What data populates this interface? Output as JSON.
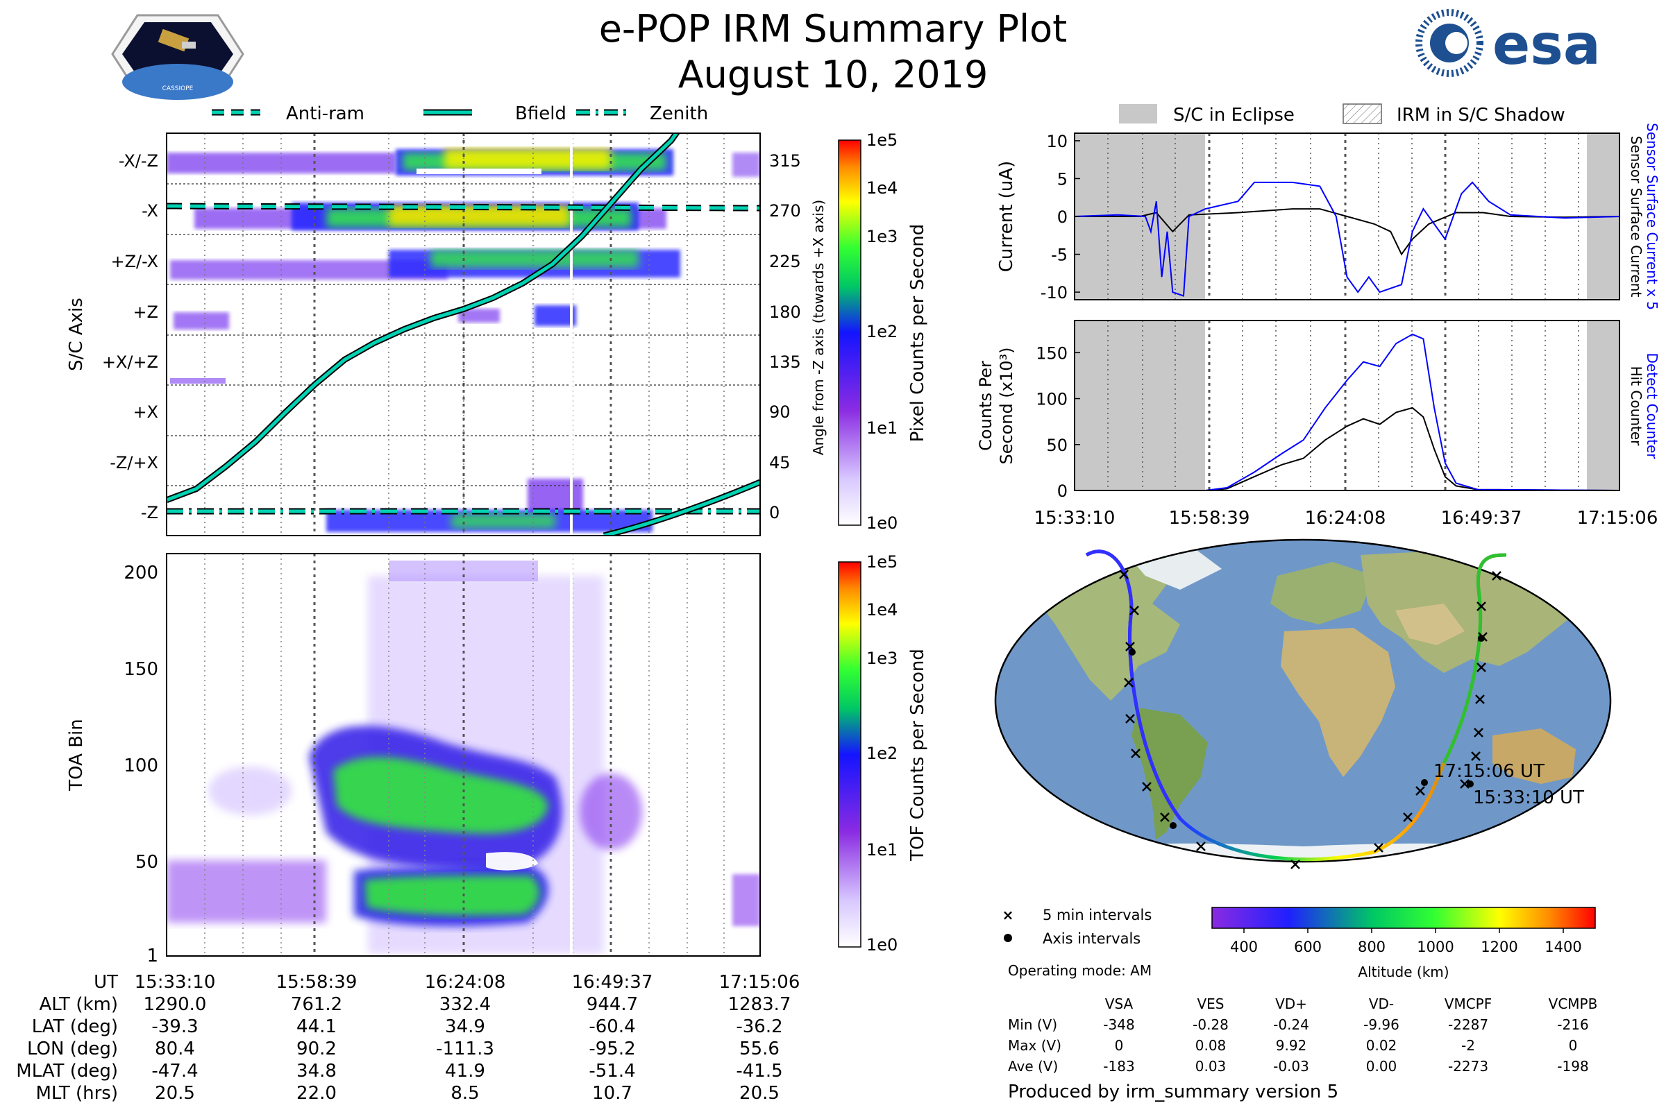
{
  "header": {
    "title": "e-POP IRM Summary Plot",
    "date": "August 10, 2019",
    "mission_logo_text": "CASSIOPE",
    "agency_logo_text": "esa"
  },
  "colors": {
    "bfield_line": "#00d2b4",
    "blue_series": "#0000ff",
    "black_series": "#000000",
    "eclipse_fill": "#c8c8c8",
    "grid_dotted": "#555555"
  },
  "chart_data": [
    {
      "id": "sc-axis-spectrogram",
      "type": "heatmap",
      "ylabel": "S/C Axis",
      "yticks": [
        "-X/-Z",
        "-X",
        "+Z/-X",
        "+Z",
        "+X/+Z",
        "+X",
        "-Z/+X",
        "-Z"
      ],
      "right_ylabel": "Angle from -Z axis (towards +X axis)",
      "right_yticks": [
        315,
        270,
        225,
        180,
        135,
        90,
        45,
        0
      ],
      "legend": [
        "Anti-ram",
        "Bfield",
        "Zenith"
      ],
      "colorbar": {
        "label": "Pixel Counts per Second",
        "ticks": [
          "1e5",
          "1e4",
          "1e3",
          "1e2",
          "1e1",
          "1e0"
        ]
      },
      "bfield_angle_deg": [
        [
          0,
          10
        ],
        [
          0.05,
          20
        ],
        [
          0.1,
          40
        ],
        [
          0.15,
          62
        ],
        [
          0.2,
          88
        ],
        [
          0.25,
          113
        ],
        [
          0.3,
          135
        ],
        [
          0.35,
          150
        ],
        [
          0.4,
          162
        ],
        [
          0.45,
          172
        ],
        [
          0.5,
          180
        ],
        [
          0.55,
          190
        ],
        [
          0.6,
          203
        ],
        [
          0.65,
          220
        ],
        [
          0.7,
          245
        ],
        [
          0.75,
          275
        ],
        [
          0.8,
          305
        ],
        [
          0.85,
          330
        ],
        [
          0.87,
          345
        ]
      ],
      "antiram_angle_deg": 270,
      "zenith_angle_deg": 0
    },
    {
      "id": "toa-spectrogram",
      "type": "heatmap",
      "ylabel": "TOA Bin",
      "yticks": [
        200,
        150,
        100,
        50,
        1
      ],
      "ylim": [
        1,
        210
      ],
      "colorbar": {
        "label": "TOF Counts per Second",
        "ticks": [
          "1e5",
          "1e4",
          "1e3",
          "1e2",
          "1e1",
          "1e0"
        ]
      }
    },
    {
      "id": "current-plot",
      "type": "line",
      "ylabel": "Current (uA)",
      "yticks": [
        10,
        5,
        0,
        -5,
        -10
      ],
      "ylim": [
        -11,
        11
      ],
      "right_label_blue": "Sensor Surface Current x 5",
      "right_label_black": "Sensor Surface Current",
      "legend": [
        "S/C in Eclipse",
        "IRM in S/C Shadow"
      ],
      "series": [
        {
          "name": "Sensor Surface Current x 5",
          "color": "blue",
          "points": [
            [
              0,
              0
            ],
            [
              0.08,
              0.2
            ],
            [
              0.13,
              0
            ],
            [
              0.14,
              -2
            ],
            [
              0.15,
              2
            ],
            [
              0.16,
              -8
            ],
            [
              0.17,
              -2
            ],
            [
              0.18,
              -10
            ],
            [
              0.2,
              -10.5
            ],
            [
              0.21,
              0
            ],
            [
              0.24,
              1
            ],
            [
              0.3,
              2
            ],
            [
              0.33,
              4.5
            ],
            [
              0.4,
              4.5
            ],
            [
              0.45,
              4
            ],
            [
              0.48,
              0
            ],
            [
              0.5,
              -8
            ],
            [
              0.52,
              -10
            ],
            [
              0.54,
              -8
            ],
            [
              0.56,
              -10
            ],
            [
              0.6,
              -9
            ],
            [
              0.62,
              -2
            ],
            [
              0.64,
              1
            ],
            [
              0.68,
              -3
            ],
            [
              0.71,
              3
            ],
            [
              0.73,
              4.5
            ],
            [
              0.76,
              2
            ],
            [
              0.8,
              0.2
            ],
            [
              0.9,
              -0.2
            ],
            [
              1,
              0
            ]
          ]
        },
        {
          "name": "Sensor Surface Current",
          "color": "black",
          "points": [
            [
              0,
              0
            ],
            [
              0.12,
              0
            ],
            [
              0.15,
              0.5
            ],
            [
              0.18,
              -2
            ],
            [
              0.21,
              0.2
            ],
            [
              0.3,
              0.5
            ],
            [
              0.4,
              1
            ],
            [
              0.45,
              1
            ],
            [
              0.5,
              0
            ],
            [
              0.55,
              -1
            ],
            [
              0.58,
              -2
            ],
            [
              0.6,
              -5
            ],
            [
              0.62,
              -3
            ],
            [
              0.65,
              -1
            ],
            [
              0.7,
              0.5
            ],
            [
              0.75,
              0.5
            ],
            [
              0.8,
              0
            ],
            [
              0.9,
              -0.1
            ],
            [
              1,
              0
            ]
          ]
        }
      ]
    },
    {
      "id": "counts-plot",
      "type": "line",
      "ylabel": "Counts Per Second (x10³)",
      "yticks": [
        150,
        100,
        50,
        0
      ],
      "ylim": [
        0,
        185
      ],
      "right_label_blue": "Detect Counter",
      "right_label_black": "Hit Counter",
      "xticks": [
        "15:33:10",
        "15:58:39",
        "16:24:08",
        "16:49:37",
        "17:15:06"
      ],
      "series": [
        {
          "name": "Detect Counter",
          "color": "blue",
          "points": [
            [
              0,
              0
            ],
            [
              0.24,
              0
            ],
            [
              0.28,
              3
            ],
            [
              0.33,
              20
            ],
            [
              0.38,
              40
            ],
            [
              0.42,
              55
            ],
            [
              0.46,
              90
            ],
            [
              0.5,
              120
            ],
            [
              0.53,
              140
            ],
            [
              0.56,
              135
            ],
            [
              0.59,
              160
            ],
            [
              0.62,
              170
            ],
            [
              0.64,
              165
            ],
            [
              0.66,
              90
            ],
            [
              0.68,
              30
            ],
            [
              0.7,
              8
            ],
            [
              0.74,
              1
            ],
            [
              1,
              0
            ]
          ]
        },
        {
          "name": "Hit Counter",
          "color": "black",
          "points": [
            [
              0,
              0
            ],
            [
              0.24,
              0
            ],
            [
              0.28,
              2
            ],
            [
              0.33,
              15
            ],
            [
              0.38,
              28
            ],
            [
              0.42,
              35
            ],
            [
              0.46,
              55
            ],
            [
              0.5,
              70
            ],
            [
              0.53,
              78
            ],
            [
              0.56,
              72
            ],
            [
              0.59,
              85
            ],
            [
              0.62,
              90
            ],
            [
              0.64,
              80
            ],
            [
              0.66,
              45
            ],
            [
              0.68,
              15
            ],
            [
              0.7,
              5
            ],
            [
              0.74,
              1
            ],
            [
              1,
              0
            ]
          ]
        }
      ]
    },
    {
      "id": "ground-track-map",
      "type": "scatter",
      "labels": [
        "17:15:06 UT",
        "15:33:10 UT"
      ],
      "legend": [
        "5 min intervals",
        "Axis intervals"
      ],
      "operating_mode": "Operating mode: AM",
      "colorbar": {
        "label": "Altitude (km)",
        "ticks": [
          400,
          600,
          800,
          1000,
          1200,
          1400
        ],
        "range": [
          300,
          1500
        ]
      }
    }
  ],
  "bottom_table": {
    "row_labels": [
      "UT",
      "ALT (km)",
      "LAT (deg)",
      "LON (deg)",
      "MLAT (deg)",
      "MLT (hrs)"
    ],
    "columns": [
      [
        "15:33:10",
        "1290.0",
        "-39.3",
        "80.4",
        "-47.4",
        "20.5"
      ],
      [
        "15:58:39",
        "761.2",
        "44.1",
        "90.2",
        "34.8",
        "22.0"
      ],
      [
        "16:24:08",
        "332.4",
        "34.9",
        "-111.3",
        "41.9",
        "8.5"
      ],
      [
        "16:49:37",
        "944.7",
        "-60.4",
        "-95.2",
        "-51.4",
        "10.7"
      ],
      [
        "17:15:06",
        "1283.7",
        "-36.2",
        "55.6",
        "-41.5",
        "20.5"
      ]
    ]
  },
  "voltage_table": {
    "headers": [
      "VSA",
      "VES",
      "VD+",
      "VD-",
      "VMCPF",
      "VCMPB"
    ],
    "rows": [
      {
        "label": "Min (V)",
        "values": [
          "-348",
          "-0.28",
          "-0.24",
          "-9.96",
          "-2287",
          "-216"
        ]
      },
      {
        "label": "Max (V)",
        "values": [
          "0",
          "0.08",
          "9.92",
          "0.02",
          "-2",
          "0"
        ]
      },
      {
        "label": "Ave (V)",
        "values": [
          "-183",
          "0.03",
          "-0.03",
          "0.00",
          "-2273",
          "-198"
        ]
      }
    ]
  },
  "footer": {
    "produced_by": "Produced by irm_summary version 5"
  }
}
